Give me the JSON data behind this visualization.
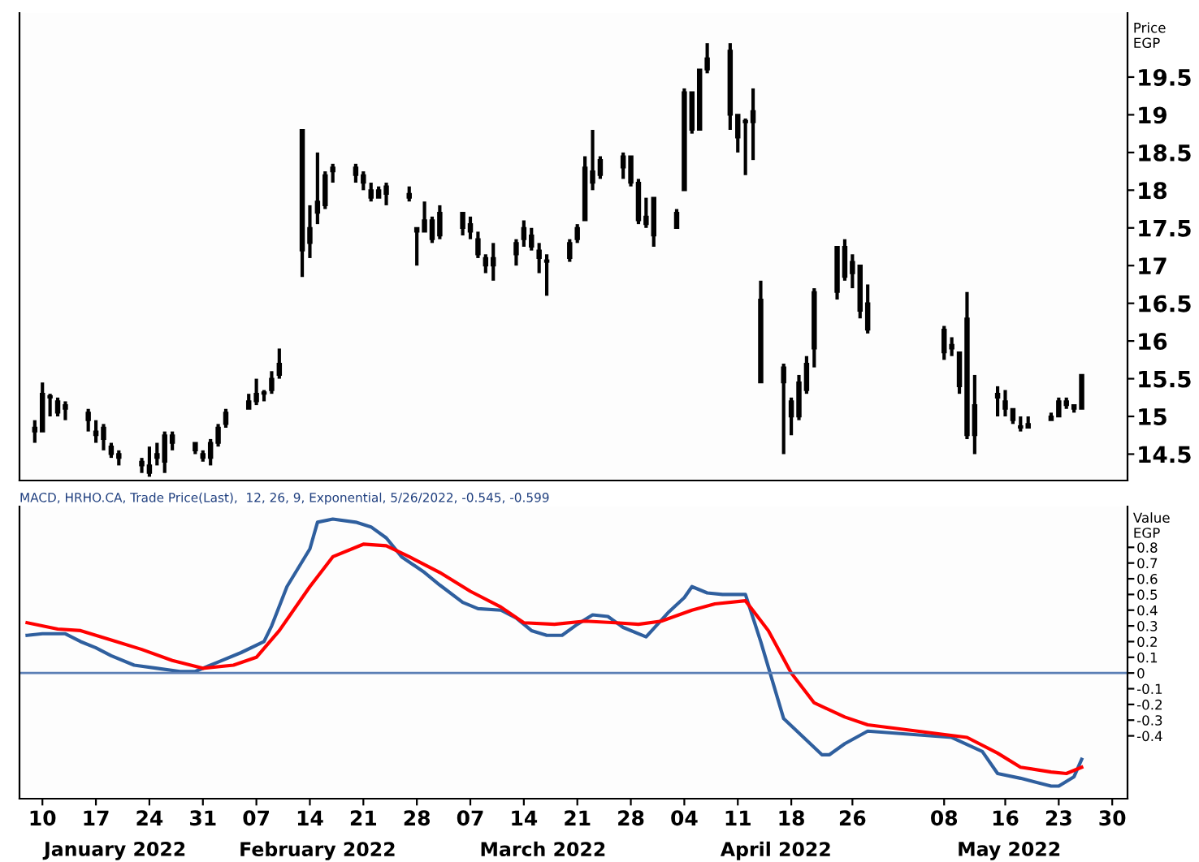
{
  "chart_data": [
    {
      "type": "candlestick",
      "ylabel": "Price\nEGP",
      "color": "#000000",
      "x": [
        "2022-01-09",
        "2022-01-10",
        "2022-01-11",
        "2022-01-12",
        "2022-01-13",
        "2022-01-16",
        "2022-01-17",
        "2022-01-18",
        "2022-01-19",
        "2022-01-20",
        "2022-01-23",
        "2022-01-24",
        "2022-01-25",
        "2022-01-26",
        "2022-01-27",
        "2022-01-30",
        "2022-01-31",
        "2022-02-01",
        "2022-02-02",
        "2022-02-03",
        "2022-02-06",
        "2022-02-07",
        "2022-02-08",
        "2022-02-09",
        "2022-02-10",
        "2022-02-13",
        "2022-02-14",
        "2022-02-15",
        "2022-02-16",
        "2022-02-17",
        "2022-02-20",
        "2022-02-21",
        "2022-02-22",
        "2022-02-23",
        "2022-02-24",
        "2022-02-27",
        "2022-02-28",
        "2022-03-01",
        "2022-03-02",
        "2022-03-03",
        "2022-03-06",
        "2022-03-07",
        "2022-03-08",
        "2022-03-09",
        "2022-03-10",
        "2022-03-13",
        "2022-03-14",
        "2022-03-15",
        "2022-03-16",
        "2022-03-17",
        "2022-03-20",
        "2022-03-21",
        "2022-03-22",
        "2022-03-23",
        "2022-03-24",
        "2022-03-27",
        "2022-03-28",
        "2022-03-29",
        "2022-03-30",
        "2022-03-31",
        "2022-04-03",
        "2022-04-04",
        "2022-04-05",
        "2022-04-06",
        "2022-04-07",
        "2022-04-10",
        "2022-04-11",
        "2022-04-12",
        "2022-04-13",
        "2022-04-14",
        "2022-04-17",
        "2022-04-18",
        "2022-04-19",
        "2022-04-20",
        "2022-04-21",
        "2022-04-24",
        "2022-04-25",
        "2022-04-26",
        "2022-04-27",
        "2022-04-28",
        "2022-05-08",
        "2022-05-09",
        "2022-05-10",
        "2022-05-11",
        "2022-05-12",
        "2022-05-15",
        "2022-05-16",
        "2022-05-17",
        "2022-05-18",
        "2022-05-19",
        "2022-05-22",
        "2022-05-23",
        "2022-05-24",
        "2022-05-25",
        "2022-05-26"
      ],
      "ohlc": [
        [
          14.85,
          14.95,
          14.65,
          14.8
        ],
        [
          14.8,
          15.45,
          14.8,
          15.3
        ],
        [
          15.25,
          15.3,
          15.0,
          15.25
        ],
        [
          15.2,
          15.25,
          15.0,
          15.05
        ],
        [
          15.1,
          15.2,
          14.95,
          15.15
        ],
        [
          15.05,
          15.1,
          14.8,
          14.95
        ],
        [
          14.8,
          14.95,
          14.65,
          14.75
        ],
        [
          14.85,
          14.9,
          14.55,
          14.7
        ],
        [
          14.6,
          14.65,
          14.45,
          14.5
        ],
        [
          14.5,
          14.55,
          14.35,
          14.45
        ],
        [
          14.4,
          14.45,
          14.25,
          14.35
        ],
        [
          14.35,
          14.6,
          14.2,
          14.25
        ],
        [
          14.5,
          14.65,
          14.35,
          14.45
        ],
        [
          14.4,
          14.8,
          14.25,
          14.75
        ],
        [
          14.75,
          14.8,
          14.55,
          14.65
        ],
        [
          14.65,
          14.65,
          14.5,
          14.55
        ],
        [
          14.5,
          14.55,
          14.4,
          14.45
        ],
        [
          14.45,
          14.7,
          14.35,
          14.65
        ],
        [
          14.65,
          14.9,
          14.6,
          14.85
        ],
        [
          14.9,
          15.1,
          14.85,
          15.05
        ],
        [
          15.1,
          15.3,
          15.1,
          15.2
        ],
        [
          15.2,
          15.5,
          15.15,
          15.3
        ],
        [
          15.3,
          15.35,
          15.2,
          15.3
        ],
        [
          15.35,
          15.6,
          15.3,
          15.5
        ],
        [
          15.55,
          15.9,
          15.5,
          15.7
        ],
        [
          18.8,
          18.8,
          16.85,
          17.2
        ],
        [
          17.3,
          17.8,
          17.1,
          17.5
        ],
        [
          17.7,
          18.5,
          17.55,
          17.85
        ],
        [
          17.8,
          18.25,
          17.75,
          18.2
        ],
        [
          18.25,
          18.35,
          18.1,
          18.3
        ],
        [
          18.3,
          18.35,
          18.1,
          18.2
        ],
        [
          18.2,
          18.25,
          18.0,
          18.1
        ],
        [
          18.0,
          18.1,
          17.85,
          17.9
        ],
        [
          17.9,
          18.05,
          17.9,
          18.0
        ],
        [
          18.05,
          18.1,
          17.8,
          17.95
        ],
        [
          17.95,
          18.05,
          17.85,
          17.9
        ],
        [
          17.5,
          17.5,
          17.0,
          17.45
        ],
        [
          17.45,
          17.85,
          17.45,
          17.6
        ],
        [
          17.6,
          17.65,
          17.3,
          17.35
        ],
        [
          17.4,
          17.8,
          17.35,
          17.7
        ],
        [
          17.7,
          17.7,
          17.4,
          17.5
        ],
        [
          17.55,
          17.65,
          17.35,
          17.45
        ],
        [
          17.35,
          17.45,
          17.1,
          17.15
        ],
        [
          17.1,
          17.15,
          16.9,
          17.0
        ],
        [
          17.0,
          17.3,
          16.8,
          17.1
        ],
        [
          17.15,
          17.35,
          17.0,
          17.3
        ],
        [
          17.35,
          17.6,
          17.25,
          17.5
        ],
        [
          17.4,
          17.5,
          17.2,
          17.25
        ],
        [
          17.2,
          17.3,
          16.9,
          17.1
        ],
        [
          17.05,
          17.15,
          16.6,
          17.05
        ],
        [
          17.1,
          17.35,
          17.05,
          17.3
        ],
        [
          17.35,
          17.55,
          17.3,
          17.5
        ],
        [
          17.6,
          18.45,
          17.6,
          18.3
        ],
        [
          18.25,
          18.8,
          18.0,
          18.1
        ],
        [
          18.4,
          18.45,
          18.15,
          18.2
        ],
        [
          18.45,
          18.5,
          18.15,
          18.3
        ],
        [
          18.45,
          18.45,
          18.05,
          18.1
        ],
        [
          18.1,
          18.15,
          17.55,
          17.6
        ],
        [
          17.65,
          17.9,
          17.5,
          17.55
        ],
        [
          17.9,
          17.9,
          17.25,
          17.4
        ],
        [
          17.5,
          17.75,
          17.5,
          17.7
        ],
        [
          18.0,
          19.35,
          18.0,
          19.3
        ],
        [
          19.3,
          19.3,
          18.75,
          18.8
        ],
        [
          18.8,
          19.6,
          18.8,
          19.6
        ],
        [
          19.6,
          19.95,
          19.55,
          19.75
        ],
        [
          19.85,
          19.95,
          18.8,
          19.0
        ],
        [
          19.0,
          19.0,
          18.5,
          18.7
        ],
        [
          18.9,
          18.95,
          18.2,
          18.9
        ],
        [
          18.9,
          19.35,
          18.4,
          19.05
        ],
        [
          16.55,
          16.8,
          15.45,
          15.45
        ],
        [
          15.45,
          15.7,
          14.5,
          15.65
        ],
        [
          15.2,
          15.25,
          14.75,
          15.0
        ],
        [
          15.0,
          15.55,
          14.95,
          15.45
        ],
        [
          15.35,
          15.8,
          15.3,
          15.7
        ],
        [
          15.9,
          16.7,
          15.65,
          16.65
        ],
        [
          16.65,
          17.25,
          16.55,
          17.25
        ],
        [
          17.25,
          17.35,
          16.8,
          16.85
        ],
        [
          16.9,
          17.15,
          16.7,
          17.05
        ],
        [
          17.0,
          17.0,
          16.3,
          16.4
        ],
        [
          16.5,
          16.75,
          16.1,
          16.15
        ],
        [
          16.15,
          16.2,
          15.75,
          15.85
        ],
        [
          15.95,
          16.05,
          15.8,
          15.9
        ],
        [
          15.85,
          15.85,
          15.3,
          15.4
        ],
        [
          16.3,
          16.65,
          14.7,
          14.75
        ],
        [
          14.75,
          15.55,
          14.5,
          15.15
        ],
        [
          15.3,
          15.4,
          15.0,
          15.25
        ],
        [
          15.2,
          15.35,
          15.0,
          15.1
        ],
        [
          15.1,
          15.1,
          14.9,
          14.95
        ],
        [
          14.85,
          15.0,
          14.8,
          14.85
        ],
        [
          14.85,
          15.0,
          14.85,
          14.9
        ],
        [
          14.95,
          15.05,
          14.95,
          15.0
        ],
        [
          15.0,
          15.25,
          15.0,
          15.2
        ],
        [
          15.2,
          15.25,
          15.1,
          15.15
        ],
        [
          15.15,
          15.15,
          15.05,
          15.1
        ],
        [
          15.1,
          15.55,
          15.1,
          15.55
        ]
      ],
      "xlim": [
        "2022-01-07",
        "2022-06-01"
      ],
      "ylim": [
        14.15,
        20.35
      ],
      "yticks": [
        14.5,
        15,
        15.5,
        16,
        16.5,
        17,
        17.5,
        18,
        18.5,
        19,
        19.5
      ],
      "tick_labels": "y",
      "grid": false
    },
    {
      "type": "line",
      "title": "MACD, HRHO.CA, Trade Price(Last),  12, 26, 9, Exponential, 5/26/2022, -0.545, -0.599",
      "ylabel": "Value\nEGP",
      "series": [
        {
          "color": "#2f5f9e",
          "x": [
            "2022-01-08",
            "2022-01-10",
            "2022-01-13",
            "2022-01-15",
            "2022-01-17",
            "2022-01-19",
            "2022-01-22",
            "2022-01-25",
            "2022-01-28",
            "2022-01-30",
            "2022-02-02",
            "2022-02-05",
            "2022-02-08",
            "2022-02-09",
            "2022-02-11",
            "2022-02-14",
            "2022-02-15",
            "2022-02-17",
            "2022-02-20",
            "2022-02-22",
            "2022-02-24",
            "2022-02-26",
            "2022-03-01",
            "2022-03-03",
            "2022-03-06",
            "2022-03-08",
            "2022-03-11",
            "2022-03-13",
            "2022-03-15",
            "2022-03-17",
            "2022-03-19",
            "2022-03-21",
            "2022-03-23",
            "2022-03-25",
            "2022-03-27",
            "2022-03-30",
            "2022-04-02",
            "2022-04-04",
            "2022-04-05",
            "2022-04-07",
            "2022-04-09",
            "2022-04-12",
            "2022-04-14",
            "2022-04-17",
            "2022-04-22",
            "2022-04-23",
            "2022-04-25",
            "2022-04-28",
            "2022-05-09",
            "2022-05-13",
            "2022-05-15",
            "2022-05-18",
            "2022-05-22",
            "2022-05-23",
            "2022-05-25",
            "2022-05-26"
          ],
          "values": [
            0.24,
            0.25,
            0.25,
            0.2,
            0.16,
            0.11,
            0.05,
            0.03,
            0.01,
            0.01,
            0.07,
            0.13,
            0.2,
            0.3,
            0.55,
            0.79,
            0.96,
            0.98,
            0.96,
            0.93,
            0.86,
            0.74,
            0.64,
            0.56,
            0.45,
            0.41,
            0.4,
            0.35,
            0.27,
            0.24,
            0.24,
            0.31,
            0.37,
            0.36,
            0.29,
            0.23,
            0.39,
            0.48,
            0.55,
            0.51,
            0.5,
            0.5,
            0.2,
            -0.29,
            -0.52,
            -0.52,
            -0.45,
            -0.37,
            -0.41,
            -0.5,
            -0.64,
            -0.67,
            -0.72,
            -0.72,
            -0.66,
            -0.55
          ]
        },
        {
          "color": "#ff0000",
          "x": [
            "2022-01-08",
            "2022-01-12",
            "2022-01-15",
            "2022-01-19",
            "2022-01-23",
            "2022-01-27",
            "2022-01-31",
            "2022-02-04",
            "2022-02-07",
            "2022-02-10",
            "2022-02-14",
            "2022-02-17",
            "2022-02-21",
            "2022-02-24",
            "2022-02-27",
            "2022-03-03",
            "2022-03-07",
            "2022-03-11",
            "2022-03-14",
            "2022-03-18",
            "2022-03-22",
            "2022-03-26",
            "2022-03-29",
            "2022-04-01",
            "2022-04-05",
            "2022-04-08",
            "2022-04-12",
            "2022-04-15",
            "2022-04-18",
            "2022-04-21",
            "2022-04-25",
            "2022-04-28",
            "2022-05-11",
            "2022-05-15",
            "2022-05-18",
            "2022-05-22",
            "2022-05-24",
            "2022-05-26"
          ],
          "values": [
            0.32,
            0.28,
            0.27,
            0.21,
            0.15,
            0.08,
            0.03,
            0.05,
            0.1,
            0.27,
            0.55,
            0.74,
            0.82,
            0.81,
            0.74,
            0.64,
            0.52,
            0.42,
            0.32,
            0.31,
            0.33,
            0.32,
            0.31,
            0.33,
            0.4,
            0.44,
            0.46,
            0.27,
            0,
            -0.19,
            -0.28,
            -0.33,
            -0.41,
            -0.51,
            -0.6,
            -0.63,
            -0.64,
            -0.6
          ]
        }
      ],
      "ref_lines": [
        {
          "axis": "y",
          "value": 0,
          "color": "#5b7fb5"
        }
      ],
      "xlim": [
        "2022-01-07",
        "2022-06-01"
      ],
      "ylim": [
        -0.8,
        1.06
      ],
      "xticks": [
        {
          "value": "2022-01-10",
          "label": "10"
        },
        {
          "value": "2022-01-17",
          "label": "17"
        },
        {
          "value": "2022-01-24",
          "label": "24"
        },
        {
          "value": "2022-01-31",
          "label": "31"
        },
        {
          "value": "2022-02-07",
          "label": "07"
        },
        {
          "value": "2022-02-14",
          "label": "14"
        },
        {
          "value": "2022-02-21",
          "label": "21"
        },
        {
          "value": "2022-02-28",
          "label": "28"
        },
        {
          "value": "2022-03-07",
          "label": "07"
        },
        {
          "value": "2022-03-14",
          "label": "14"
        },
        {
          "value": "2022-03-21",
          "label": "21"
        },
        {
          "value": "2022-03-28",
          "label": "28"
        },
        {
          "value": "2022-04-04",
          "label": "04"
        },
        {
          "value": "2022-04-11",
          "label": "11"
        },
        {
          "value": "2022-04-18",
          "label": "18"
        },
        {
          "value": "2022-04-26",
          "label": "26"
        },
        {
          "value": "2022-05-08",
          "label": "08"
        },
        {
          "value": "2022-05-16",
          "label": "16"
        },
        {
          "value": "2022-05-23",
          "label": "23"
        },
        {
          "value": "2022-05-30",
          "label": "30"
        }
      ],
      "yticks": [
        -0.4,
        -0.3,
        -0.2,
        -0.1,
        0,
        0.1,
        0.2,
        0.3,
        0.4,
        0.5,
        0.6,
        0.7,
        0.8
      ],
      "annotations": [
        "January 2022",
        "February 2022",
        "March 2022",
        "April 2022",
        "May 2022"
      ],
      "grid": false,
      "marker": "none",
      "line_style": "solid"
    }
  ]
}
